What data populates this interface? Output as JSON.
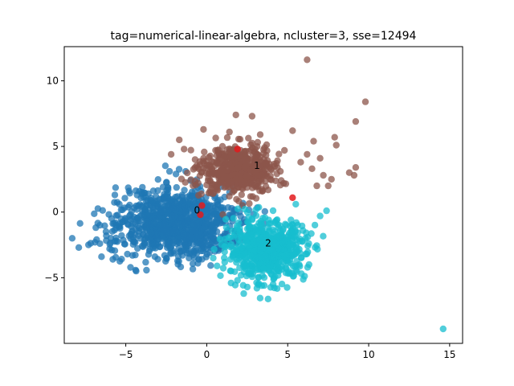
{
  "chart_data": {
    "type": "scatter",
    "title": "tag=numerical-linear-algebra, ncluster=3, sse=12494",
    "xlabel": "",
    "ylabel": "",
    "xlim": [
      -8.8,
      15.8
    ],
    "ylim": [
      -10.0,
      12.6
    ],
    "x_ticks": [
      -5,
      0,
      5,
      10,
      15
    ],
    "y_ticks": [
      -5,
      0,
      5,
      10
    ],
    "x_tick_labels": [
      "−5",
      "0",
      "5",
      "10",
      "15"
    ],
    "y_tick_labels": [
      "−5",
      "0",
      "5",
      "10"
    ],
    "grid": false,
    "legend": "none",
    "series": [
      {
        "color": "#1f77b4",
        "center": [
          -1.8,
          -0.9
        ],
        "spread": [
          1.9,
          1.3
        ],
        "count": 950,
        "outliers": [
          [
            -7.9,
            -2.7
          ],
          [
            -7.3,
            -2.5
          ],
          [
            -6.9,
            -2.3
          ],
          [
            -6.8,
            -2.1
          ],
          [
            -6.6,
            -2.4
          ],
          [
            -6.6,
            -1.0
          ],
          [
            -6.5,
            -3.4
          ],
          [
            -6.2,
            -1.8
          ],
          [
            -5.8,
            -3.6
          ],
          [
            -5.6,
            -2.2
          ],
          [
            -5.3,
            -0.5
          ],
          [
            -5.4,
            0.6
          ],
          [
            -4.8,
            1.6
          ],
          [
            -4.3,
            1.3
          ],
          [
            -4.0,
            1.5
          ],
          [
            -3.6,
            1.4
          ],
          [
            -2.3,
            3.1
          ],
          [
            -2.7,
            1.9
          ],
          [
            -1.3,
            3.1
          ],
          [
            -1.0,
            2.4
          ],
          [
            -4.9,
            -3.2
          ],
          [
            -3.2,
            -3.4
          ],
          [
            -2.6,
            -3.3
          ],
          [
            -1.5,
            -3.3
          ],
          [
            -1.1,
            -3.5
          ],
          [
            -0.5,
            -3.6
          ],
          [
            -6.0,
            -2.8
          ],
          [
            -1.9,
            2.9
          ]
        ]
      },
      {
        "color": "#8c564b",
        "center": [
          1.9,
          3.2
        ],
        "spread": [
          1.1,
          0.9
        ],
        "count": 560,
        "outliers": [
          [
            6.2,
            11.6
          ],
          [
            9.8,
            8.4
          ],
          [
            9.2,
            6.9
          ],
          [
            1.8,
            7.4
          ],
          [
            2.8,
            7.3
          ],
          [
            7.9,
            5.7
          ],
          [
            8.0,
            5.1
          ],
          [
            6.6,
            5.4
          ],
          [
            7.0,
            4.1
          ],
          [
            6.2,
            4.4
          ],
          [
            5.8,
            3.8
          ],
          [
            9.2,
            3.4
          ],
          [
            8.8,
            3.0
          ],
          [
            7.2,
            2.8
          ],
          [
            9.1,
            2.8
          ],
          [
            7.7,
            2.5
          ],
          [
            6.8,
            2.0
          ],
          [
            7.5,
            2.0
          ],
          [
            6.5,
            3.3
          ],
          [
            -1.4,
            4.8
          ],
          [
            -1.7,
            5.5
          ],
          [
            -0.2,
            6.3
          ],
          [
            1.4,
            6.1
          ],
          [
            -2.2,
            4.4
          ],
          [
            5.3,
            6.2
          ],
          [
            4.8,
            4.7
          ],
          [
            3.3,
            5.9
          ],
          [
            3.4,
            2.8
          ],
          [
            4.6,
            2.4
          ]
        ]
      },
      {
        "color": "#17becf",
        "center": [
          3.7,
          -2.9
        ],
        "spread": [
          1.2,
          1.1
        ],
        "count": 640,
        "outliers": [
          [
            14.6,
            -8.9
          ],
          [
            7.4,
            0.1
          ],
          [
            7.0,
            -0.3
          ],
          [
            6.3,
            -2.4
          ],
          [
            5.5,
            0.6
          ],
          [
            0.4,
            -3.5
          ],
          [
            1.5,
            -5.4
          ],
          [
            1.9,
            -5.2
          ],
          [
            3.1,
            -5.8
          ],
          [
            3.4,
            -5.6
          ],
          [
            4.1,
            -5.5
          ],
          [
            5.1,
            -1.6
          ],
          [
            5.2,
            -0.6
          ],
          [
            1.5,
            -4.5
          ],
          [
            6.1,
            -2.0
          ]
        ]
      }
    ],
    "centroids": [
      {
        "label": "0",
        "x": -0.3,
        "y": 0.5
      },
      {
        "label": "0",
        "x": -0.4,
        "y": -0.2
      },
      {
        "label": "1",
        "x": 1.9,
        "y": 4.8
      },
      {
        "label": "2",
        "x": 5.3,
        "y": 1.1
      }
    ],
    "cluster_labels": [
      {
        "text": "0",
        "x": -0.6,
        "y": 0.1
      },
      {
        "text": "1",
        "x": 3.1,
        "y": 3.5
      },
      {
        "text": "2",
        "x": 3.8,
        "y": -2.4
      }
    ],
    "centroid_color": "#e31a1c"
  }
}
